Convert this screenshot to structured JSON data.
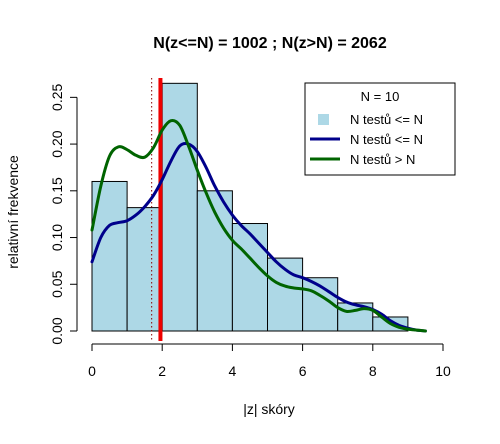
{
  "chart_data": {
    "type": "bar",
    "title": "N(z<=N) = 1002 ; N(z>N) = 2062",
    "xlabel": "|z| skóry",
    "ylabel": "relativní frekvence",
    "xlim": [
      0,
      10
    ],
    "ylim": [
      0,
      0.26
    ],
    "x_ticks": [
      0,
      2,
      4,
      6,
      8,
      10
    ],
    "y_ticks": [
      0.0,
      0.05,
      0.1,
      0.15,
      0.2,
      0.25
    ],
    "histogram": {
      "bin_edges": [
        0,
        1,
        2,
        3,
        4,
        5,
        6,
        7,
        8,
        9
      ],
      "values": [
        0.16,
        0.132,
        0.265,
        0.15,
        0.115,
        0.078,
        0.057,
        0.03,
        0.015
      ],
      "color": "#add8e6"
    },
    "series": [
      {
        "name": "N testů <= N",
        "color": "#00008b",
        "x": [
          0,
          0.25,
          0.5,
          0.75,
          1.0,
          1.25,
          1.5,
          1.75,
          2.0,
          2.25,
          2.5,
          2.75,
          3.0,
          3.25,
          3.5,
          3.75,
          4.0,
          4.25,
          4.5,
          4.75,
          5.0,
          5.25,
          5.5,
          5.75,
          6.0,
          6.25,
          6.5,
          6.75,
          7.0,
          7.25,
          7.5,
          7.75,
          8.0,
          8.25,
          8.5,
          8.75,
          9.0,
          9.25,
          9.5
        ],
        "y": [
          0.074,
          0.1,
          0.113,
          0.116,
          0.118,
          0.124,
          0.133,
          0.145,
          0.162,
          0.182,
          0.198,
          0.2,
          0.192,
          0.175,
          0.155,
          0.138,
          0.124,
          0.113,
          0.104,
          0.094,
          0.084,
          0.074,
          0.066,
          0.06,
          0.057,
          0.053,
          0.048,
          0.042,
          0.036,
          0.031,
          0.028,
          0.026,
          0.023,
          0.018,
          0.011,
          0.006,
          0.003,
          0.001,
          0.0
        ]
      },
      {
        "name": "N testů > N",
        "color": "#006400",
        "x": [
          0,
          0.25,
          0.5,
          0.75,
          1.0,
          1.25,
          1.5,
          1.75,
          2.0,
          2.25,
          2.5,
          2.75,
          3.0,
          3.25,
          3.5,
          3.75,
          4.0,
          4.25,
          4.5,
          4.75,
          5.0,
          5.25,
          5.5,
          5.75,
          6.0,
          6.25,
          6.5,
          6.75,
          7.0,
          7.25,
          7.5,
          7.75,
          8.0,
          8.25,
          8.5,
          8.75,
          9.0,
          9.25,
          9.5
        ],
        "y": [
          0.108,
          0.155,
          0.187,
          0.197,
          0.194,
          0.188,
          0.186,
          0.196,
          0.215,
          0.225,
          0.22,
          0.198,
          0.172,
          0.148,
          0.127,
          0.11,
          0.097,
          0.088,
          0.078,
          0.068,
          0.059,
          0.052,
          0.048,
          0.046,
          0.045,
          0.043,
          0.038,
          0.032,
          0.025,
          0.021,
          0.022,
          0.024,
          0.022,
          0.015,
          0.008,
          0.004,
          0.002,
          0.001,
          0.0
        ]
      }
    ],
    "vlines": [
      {
        "x": 1.95,
        "color": "#ee0000",
        "style": "solid"
      },
      {
        "x": 1.7,
        "color": "#8b0000",
        "style": "dotted"
      }
    ],
    "legend": {
      "position": "top-right",
      "title": "N = 10",
      "entries": [
        {
          "label": "N testů <= N",
          "kind": "box",
          "color": "#add8e6"
        },
        {
          "label": "N testů <= N",
          "kind": "line",
          "color": "#00008b"
        },
        {
          "label": "N testů > N",
          "kind": "line",
          "color": "#006400"
        }
      ]
    }
  }
}
